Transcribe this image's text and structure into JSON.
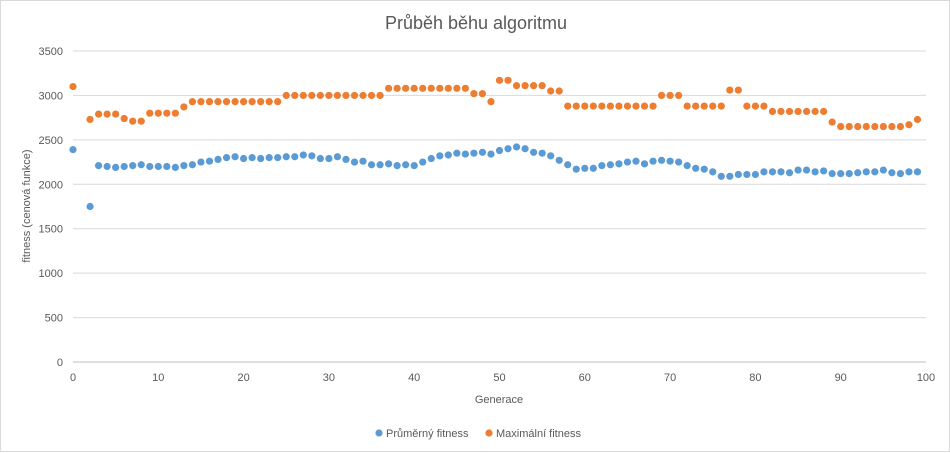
{
  "chart_data": {
    "type": "scatter",
    "title": "Průběh běhu algoritmu",
    "xlabel": "Generace",
    "ylabel": "fitness (cenová funkce)",
    "xlim": [
      0,
      100
    ],
    "ylim": [
      0,
      3500
    ],
    "x_ticks": [
      0,
      10,
      20,
      30,
      40,
      50,
      60,
      70,
      80,
      90,
      100
    ],
    "y_ticks": [
      0,
      500,
      1000,
      1500,
      2000,
      2500,
      3000,
      3500
    ],
    "grid": "horizontal",
    "legend_position": "bottom",
    "colors": {
      "avg": "#5b9bd5",
      "max": "#ed7d31"
    },
    "series": [
      {
        "name": "Průměrný fitness",
        "x": [
          0,
          2,
          3,
          4,
          5,
          6,
          7,
          8,
          9,
          10,
          11,
          12,
          13,
          14,
          15,
          16,
          17,
          18,
          19,
          20,
          21,
          22,
          23,
          24,
          25,
          26,
          27,
          28,
          29,
          30,
          31,
          32,
          33,
          34,
          35,
          36,
          37,
          38,
          39,
          40,
          41,
          42,
          43,
          44,
          45,
          46,
          47,
          48,
          49,
          50,
          51,
          52,
          53,
          54,
          55,
          56,
          57,
          58,
          59,
          60,
          61,
          62,
          63,
          64,
          65,
          66,
          67,
          68,
          69,
          70,
          71,
          72,
          73,
          74,
          75,
          76,
          77,
          78,
          79,
          80,
          81,
          82,
          83,
          84,
          85,
          86,
          87,
          88,
          89,
          90,
          91,
          92,
          93,
          94,
          95,
          96,
          97,
          98,
          99
        ],
        "values": [
          2390,
          1750,
          2210,
          2200,
          2190,
          2200,
          2210,
          2220,
          2200,
          2200,
          2200,
          2190,
          2210,
          2220,
          2250,
          2260,
          2280,
          2300,
          2310,
          2290,
          2300,
          2290,
          2300,
          2300,
          2310,
          2310,
          2330,
          2320,
          2290,
          2290,
          2310,
          2280,
          2250,
          2260,
          2220,
          2220,
          2230,
          2210,
          2220,
          2210,
          2250,
          2290,
          2320,
          2330,
          2350,
          2340,
          2350,
          2360,
          2340,
          2380,
          2400,
          2420,
          2400,
          2360,
          2350,
          2320,
          2270,
          2220,
          2170,
          2180,
          2180,
          2210,
          2220,
          2230,
          2250,
          2260,
          2230,
          2260,
          2270,
          2260,
          2250,
          2210,
          2180,
          2170,
          2140,
          2090,
          2090,
          2110,
          2110,
          2110,
          2140,
          2140,
          2140,
          2130,
          2160,
          2160,
          2140,
          2150,
          2120,
          2120,
          2120,
          2130,
          2140,
          2140,
          2160,
          2130,
          2120,
          2140,
          2140
        ]
      },
      {
        "name": "Maximální fitness",
        "x": [
          0,
          2,
          3,
          4,
          5,
          6,
          7,
          8,
          9,
          10,
          11,
          12,
          13,
          14,
          15,
          16,
          17,
          18,
          19,
          20,
          21,
          22,
          23,
          24,
          25,
          26,
          27,
          28,
          29,
          30,
          31,
          32,
          33,
          34,
          35,
          36,
          37,
          38,
          39,
          40,
          41,
          42,
          43,
          44,
          45,
          46,
          47,
          48,
          49,
          50,
          51,
          52,
          53,
          54,
          55,
          56,
          57,
          58,
          59,
          60,
          61,
          62,
          63,
          64,
          65,
          66,
          67,
          68,
          69,
          70,
          71,
          72,
          73,
          74,
          75,
          76,
          77,
          78,
          79,
          80,
          81,
          82,
          83,
          84,
          85,
          86,
          87,
          88,
          89,
          90,
          91,
          92,
          93,
          94,
          95,
          96,
          97,
          98,
          99
        ],
        "values": [
          3100,
          2730,
          2790,
          2790,
          2790,
          2740,
          2710,
          2710,
          2800,
          2800,
          2800,
          2800,
          2870,
          2930,
          2930,
          2930,
          2930,
          2930,
          2930,
          2930,
          2930,
          2930,
          2930,
          2930,
          3000,
          3000,
          3000,
          3000,
          3000,
          3000,
          3000,
          3000,
          3000,
          3000,
          3000,
          3000,
          3080,
          3080,
          3080,
          3080,
          3080,
          3080,
          3080,
          3080,
          3080,
          3080,
          3020,
          3020,
          2930,
          3170,
          3170,
          3110,
          3110,
          3110,
          3110,
          3050,
          3050,
          2880,
          2880,
          2880,
          2880,
          2880,
          2880,
          2880,
          2880,
          2880,
          2880,
          2880,
          3000,
          3000,
          3000,
          2880,
          2880,
          2880,
          2880,
          2880,
          3060,
          3060,
          2880,
          2880,
          2880,
          2820,
          2820,
          2820,
          2820,
          2820,
          2820,
          2820,
          2700,
          2650,
          2650,
          2650,
          2650,
          2650,
          2650,
          2650,
          2650,
          2670,
          2730
        ]
      }
    ]
  }
}
